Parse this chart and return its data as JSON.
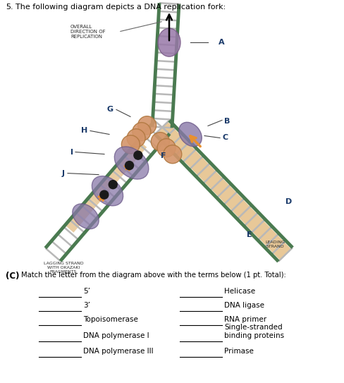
{
  "title_number": "5.",
  "title_text": "  The following diagram depicts a DNA replication fork:",
  "question_label": "(C)",
  "question_text": "Match the letter from the diagram above with the terms below (1 pt. Total):",
  "left_column_terms": [
    "5’",
    "3’",
    "Topoisomerase",
    "DNA polymerase I",
    "DNA polymerase III"
  ],
  "right_column_terms": [
    "Helicase",
    "DNA ligase",
    "RNA primer",
    "Single-stranded\nbinding proteins",
    "Primase"
  ],
  "overall_label": "OVERALL\nDIRECTION OF\nREPLICATION",
  "lagging_label": "LAGGING STRAND\nWITH OKAZAKI\nFRAGMENTS",
  "leading_label": "LEADING\nSTRAND",
  "bg_color": "#ffffff",
  "dna_color": "#4a7a50",
  "rung_color": "#b8b8b8",
  "helicase_color": "#c8907a",
  "ssb_color": "#d4956a",
  "polymerase_purple": "#8878a8",
  "okazaki_color": "#e8c898",
  "arrow_color": "#e89030",
  "dot_color": "#1a1a1a",
  "label_color": "#1a3a6a",
  "text_color": "#2a2a2a"
}
